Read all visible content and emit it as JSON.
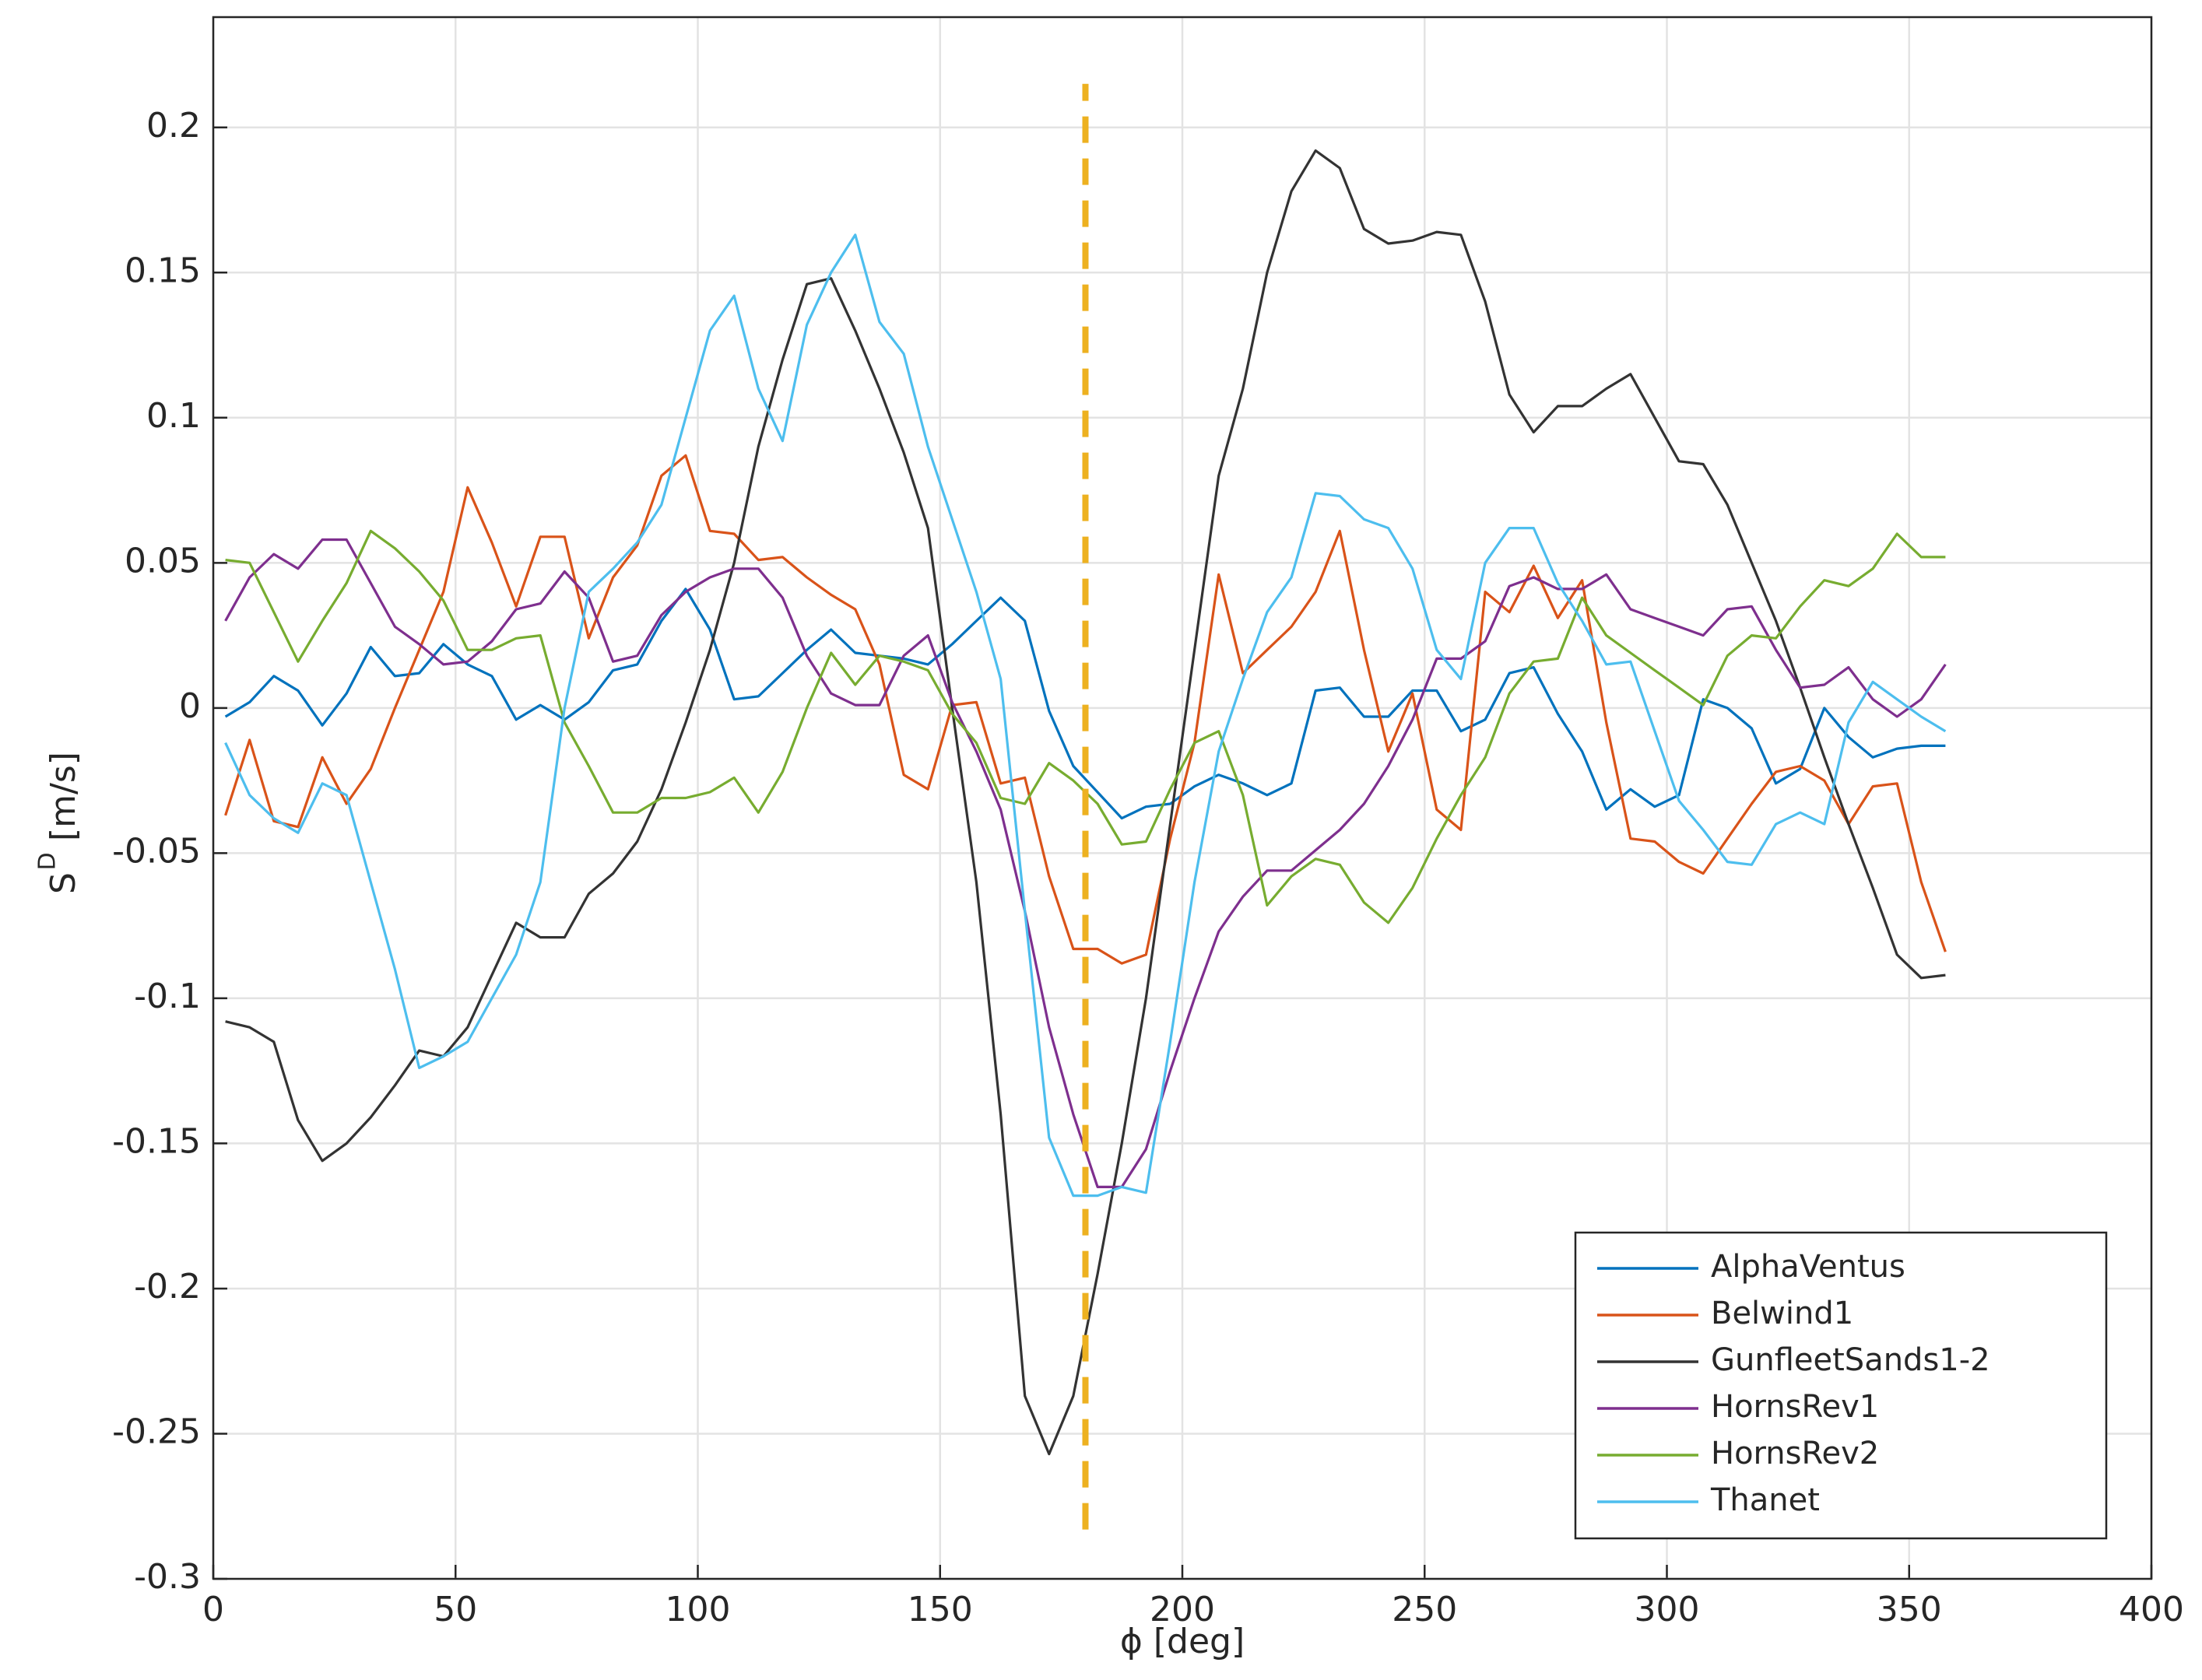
{
  "chart_data": {
    "type": "line",
    "xlabel": "ϕ [deg]",
    "ylabel_base": "S",
    "ylabel_sup": "D",
    "ylabel_unit": "[m/s]",
    "xlim": [
      0,
      400
    ],
    "ylim": [
      -0.3,
      0.238
    ],
    "xticks": [
      0,
      50,
      100,
      150,
      200,
      250,
      300,
      350,
      400
    ],
    "yticks": [
      -0.3,
      -0.25,
      -0.2,
      -0.15,
      -0.1,
      -0.05,
      0,
      0.05,
      0.1,
      0.15,
      0.2
    ],
    "grid": true,
    "legend": "lower right",
    "vline": {
      "x": 180,
      "ylim": [
        -0.283,
        0.215
      ],
      "color": "#edb120"
    },
    "x": [
      2.5,
      7.5,
      12.5,
      17.5,
      22.5,
      27.5,
      32.5,
      37.5,
      42.5,
      47.5,
      52.5,
      57.5,
      62.5,
      67.5,
      72.5,
      77.5,
      82.5,
      87.5,
      92.5,
      97.5,
      102.5,
      107.5,
      112.5,
      117.5,
      122.5,
      127.5,
      132.5,
      137.5,
      142.5,
      147.5,
      152.5,
      157.5,
      162.5,
      167.5,
      172.5,
      177.5,
      182.5,
      187.5,
      192.5,
      197.5,
      202.5,
      207.5,
      212.5,
      217.5,
      222.5,
      227.5,
      232.5,
      237.5,
      242.5,
      247.5,
      252.5,
      257.5,
      262.5,
      267.5,
      272.5,
      277.5,
      282.5,
      287.5,
      292.5,
      297.5,
      302.5,
      307.5,
      312.5,
      317.5,
      322.5,
      327.5,
      332.5,
      337.5,
      342.5,
      347.5,
      352.5,
      357.5
    ],
    "series": [
      {
        "name": "AlphaVentus",
        "color": "#0072bd",
        "values": [
          -0.003,
          0.002,
          0.011,
          0.006,
          -0.006,
          0.005,
          0.021,
          0.011,
          0.012,
          0.022,
          0.015,
          0.011,
          -0.004,
          0.001,
          -0.004,
          0.002,
          0.013,
          0.015,
          0.03,
          0.041,
          0.027,
          0.003,
          0.004,
          0.012,
          0.02,
          0.027,
          0.019,
          0.018,
          0.017,
          0.015,
          0.022,
          0.03,
          0.038,
          0.03,
          -0.001,
          -0.02,
          -0.029,
          -0.038,
          -0.034,
          -0.033,
          -0.027,
          -0.023,
          -0.026,
          -0.03,
          -0.026,
          0.006,
          0.007,
          -0.003,
          -0.003,
          0.006,
          0.006,
          -0.008,
          -0.004,
          0.012,
          0.014,
          -0.002,
          -0.015,
          -0.035,
          -0.028,
          -0.034,
          -0.03,
          0.003,
          0.0,
          -0.007,
          -0.026,
          -0.021,
          0.0,
          -0.01,
          -0.017,
          -0.014,
          -0.013,
          -0.013
        ]
      },
      {
        "name": "Belwind1",
        "color": "#d95319",
        "values": [
          -0.037,
          -0.011,
          -0.039,
          -0.041,
          -0.017,
          -0.033,
          -0.021,
          0.0,
          0.02,
          0.04,
          0.076,
          0.057,
          0.035,
          0.059,
          0.059,
          0.024,
          0.045,
          0.056,
          0.08,
          0.087,
          0.061,
          0.06,
          0.051,
          0.052,
          0.045,
          0.039,
          0.034,
          0.015,
          -0.023,
          -0.028,
          0.001,
          0.002,
          -0.026,
          -0.024,
          -0.058,
          -0.083,
          -0.083,
          -0.088,
          -0.085,
          -0.045,
          -0.012,
          0.046,
          0.012,
          0.02,
          0.028,
          0.04,
          0.061,
          0.02,
          -0.015,
          0.005,
          -0.035,
          -0.042,
          0.04,
          0.033,
          0.049,
          0.031,
          0.044,
          -0.005,
          -0.045,
          -0.046,
          -0.053,
          -0.057,
          -0.045,
          -0.033,
          -0.022,
          -0.02,
          -0.025,
          -0.04,
          -0.027,
          -0.026,
          -0.06,
          -0.084
        ]
      },
      {
        "name": "GunfleetSands1-2",
        "color": "#333333",
        "values": [
          -0.108,
          -0.11,
          -0.115,
          -0.142,
          -0.156,
          -0.15,
          -0.141,
          -0.13,
          -0.118,
          -0.12,
          -0.11,
          -0.092,
          -0.074,
          -0.079,
          -0.079,
          -0.064,
          -0.057,
          -0.046,
          -0.028,
          -0.005,
          0.02,
          0.05,
          0.09,
          0.12,
          0.146,
          0.148,
          0.13,
          0.11,
          0.088,
          0.062,
          0.0,
          -0.06,
          -0.14,
          -0.237,
          -0.257,
          -0.237,
          -0.195,
          -0.15,
          -0.1,
          -0.04,
          0.02,
          0.08,
          0.11,
          0.15,
          0.178,
          0.192,
          0.186,
          0.165,
          0.16,
          0.161,
          0.164,
          0.163,
          0.14,
          0.108,
          0.095,
          0.104,
          0.104,
          0.11,
          0.115,
          0.1,
          0.085,
          0.084,
          0.07,
          0.05,
          0.03,
          0.007,
          -0.017,
          -0.04,
          -0.062,
          -0.085,
          -0.093,
          -0.092
        ]
      },
      {
        "name": "HornsRev1",
        "color": "#7e2f8e",
        "values": [
          0.03,
          0.045,
          0.053,
          0.048,
          0.058,
          0.058,
          0.043,
          0.028,
          0.022,
          0.015,
          0.016,
          0.023,
          0.034,
          0.036,
          0.047,
          0.038,
          0.016,
          0.018,
          0.032,
          0.04,
          0.045,
          0.048,
          0.048,
          0.038,
          0.018,
          0.005,
          0.001,
          0.001,
          0.018,
          0.025,
          0.002,
          -0.015,
          -0.035,
          -0.07,
          -0.11,
          -0.14,
          -0.165,
          -0.165,
          -0.152,
          -0.125,
          -0.1,
          -0.077,
          -0.065,
          -0.056,
          -0.056,
          -0.049,
          -0.042,
          -0.033,
          -0.02,
          -0.004,
          0.017,
          0.017,
          0.023,
          0.042,
          0.045,
          0.041,
          0.041,
          0.046,
          0.034,
          0.031,
          0.028,
          0.025,
          0.034,
          0.035,
          0.02,
          0.007,
          0.008,
          0.014,
          0.003,
          -0.003,
          0.003,
          0.015
        ]
      },
      {
        "name": "HornsRev2",
        "color": "#77ac30",
        "values": [
          0.051,
          0.05,
          0.033,
          0.016,
          0.03,
          0.043,
          0.061,
          0.055,
          0.047,
          0.037,
          0.02,
          0.02,
          0.024,
          0.025,
          -0.005,
          -0.02,
          -0.036,
          -0.036,
          -0.031,
          -0.031,
          -0.029,
          -0.024,
          -0.036,
          -0.022,
          0.0,
          0.019,
          0.008,
          0.018,
          0.016,
          0.013,
          -0.002,
          -0.012,
          -0.031,
          -0.033,
          -0.019,
          -0.025,
          -0.033,
          -0.047,
          -0.046,
          -0.028,
          -0.012,
          -0.008,
          -0.03,
          -0.068,
          -0.058,
          -0.052,
          -0.054,
          -0.067,
          -0.074,
          -0.062,
          -0.045,
          -0.03,
          -0.017,
          0.005,
          0.016,
          0.017,
          0.038,
          0.025,
          0.019,
          0.013,
          0.007,
          0.001,
          0.018,
          0.025,
          0.024,
          0.035,
          0.044,
          0.042,
          0.048,
          0.06,
          0.052,
          0.052
        ]
      },
      {
        "name": "Thanet",
        "color": "#4dbeee",
        "values": [
          -0.012,
          -0.03,
          -0.038,
          -0.043,
          -0.026,
          -0.03,
          -0.06,
          -0.09,
          -0.124,
          -0.12,
          -0.115,
          -0.1,
          -0.085,
          -0.06,
          0.0,
          0.04,
          0.048,
          0.057,
          0.07,
          0.1,
          0.13,
          0.142,
          0.11,
          0.092,
          0.132,
          0.15,
          0.163,
          0.133,
          0.122,
          0.09,
          0.065,
          0.04,
          0.01,
          -0.07,
          -0.148,
          -0.168,
          -0.168,
          -0.165,
          -0.167,
          -0.115,
          -0.06,
          -0.015,
          0.01,
          0.033,
          0.045,
          0.074,
          0.073,
          0.065,
          0.062,
          0.048,
          0.02,
          0.01,
          0.05,
          0.062,
          0.062,
          0.043,
          0.03,
          0.015,
          0.016,
          -0.008,
          -0.032,
          -0.042,
          -0.053,
          -0.054,
          -0.04,
          -0.036,
          -0.04,
          -0.005,
          0.009,
          0.003,
          -0.003,
          -0.008
        ]
      }
    ]
  }
}
